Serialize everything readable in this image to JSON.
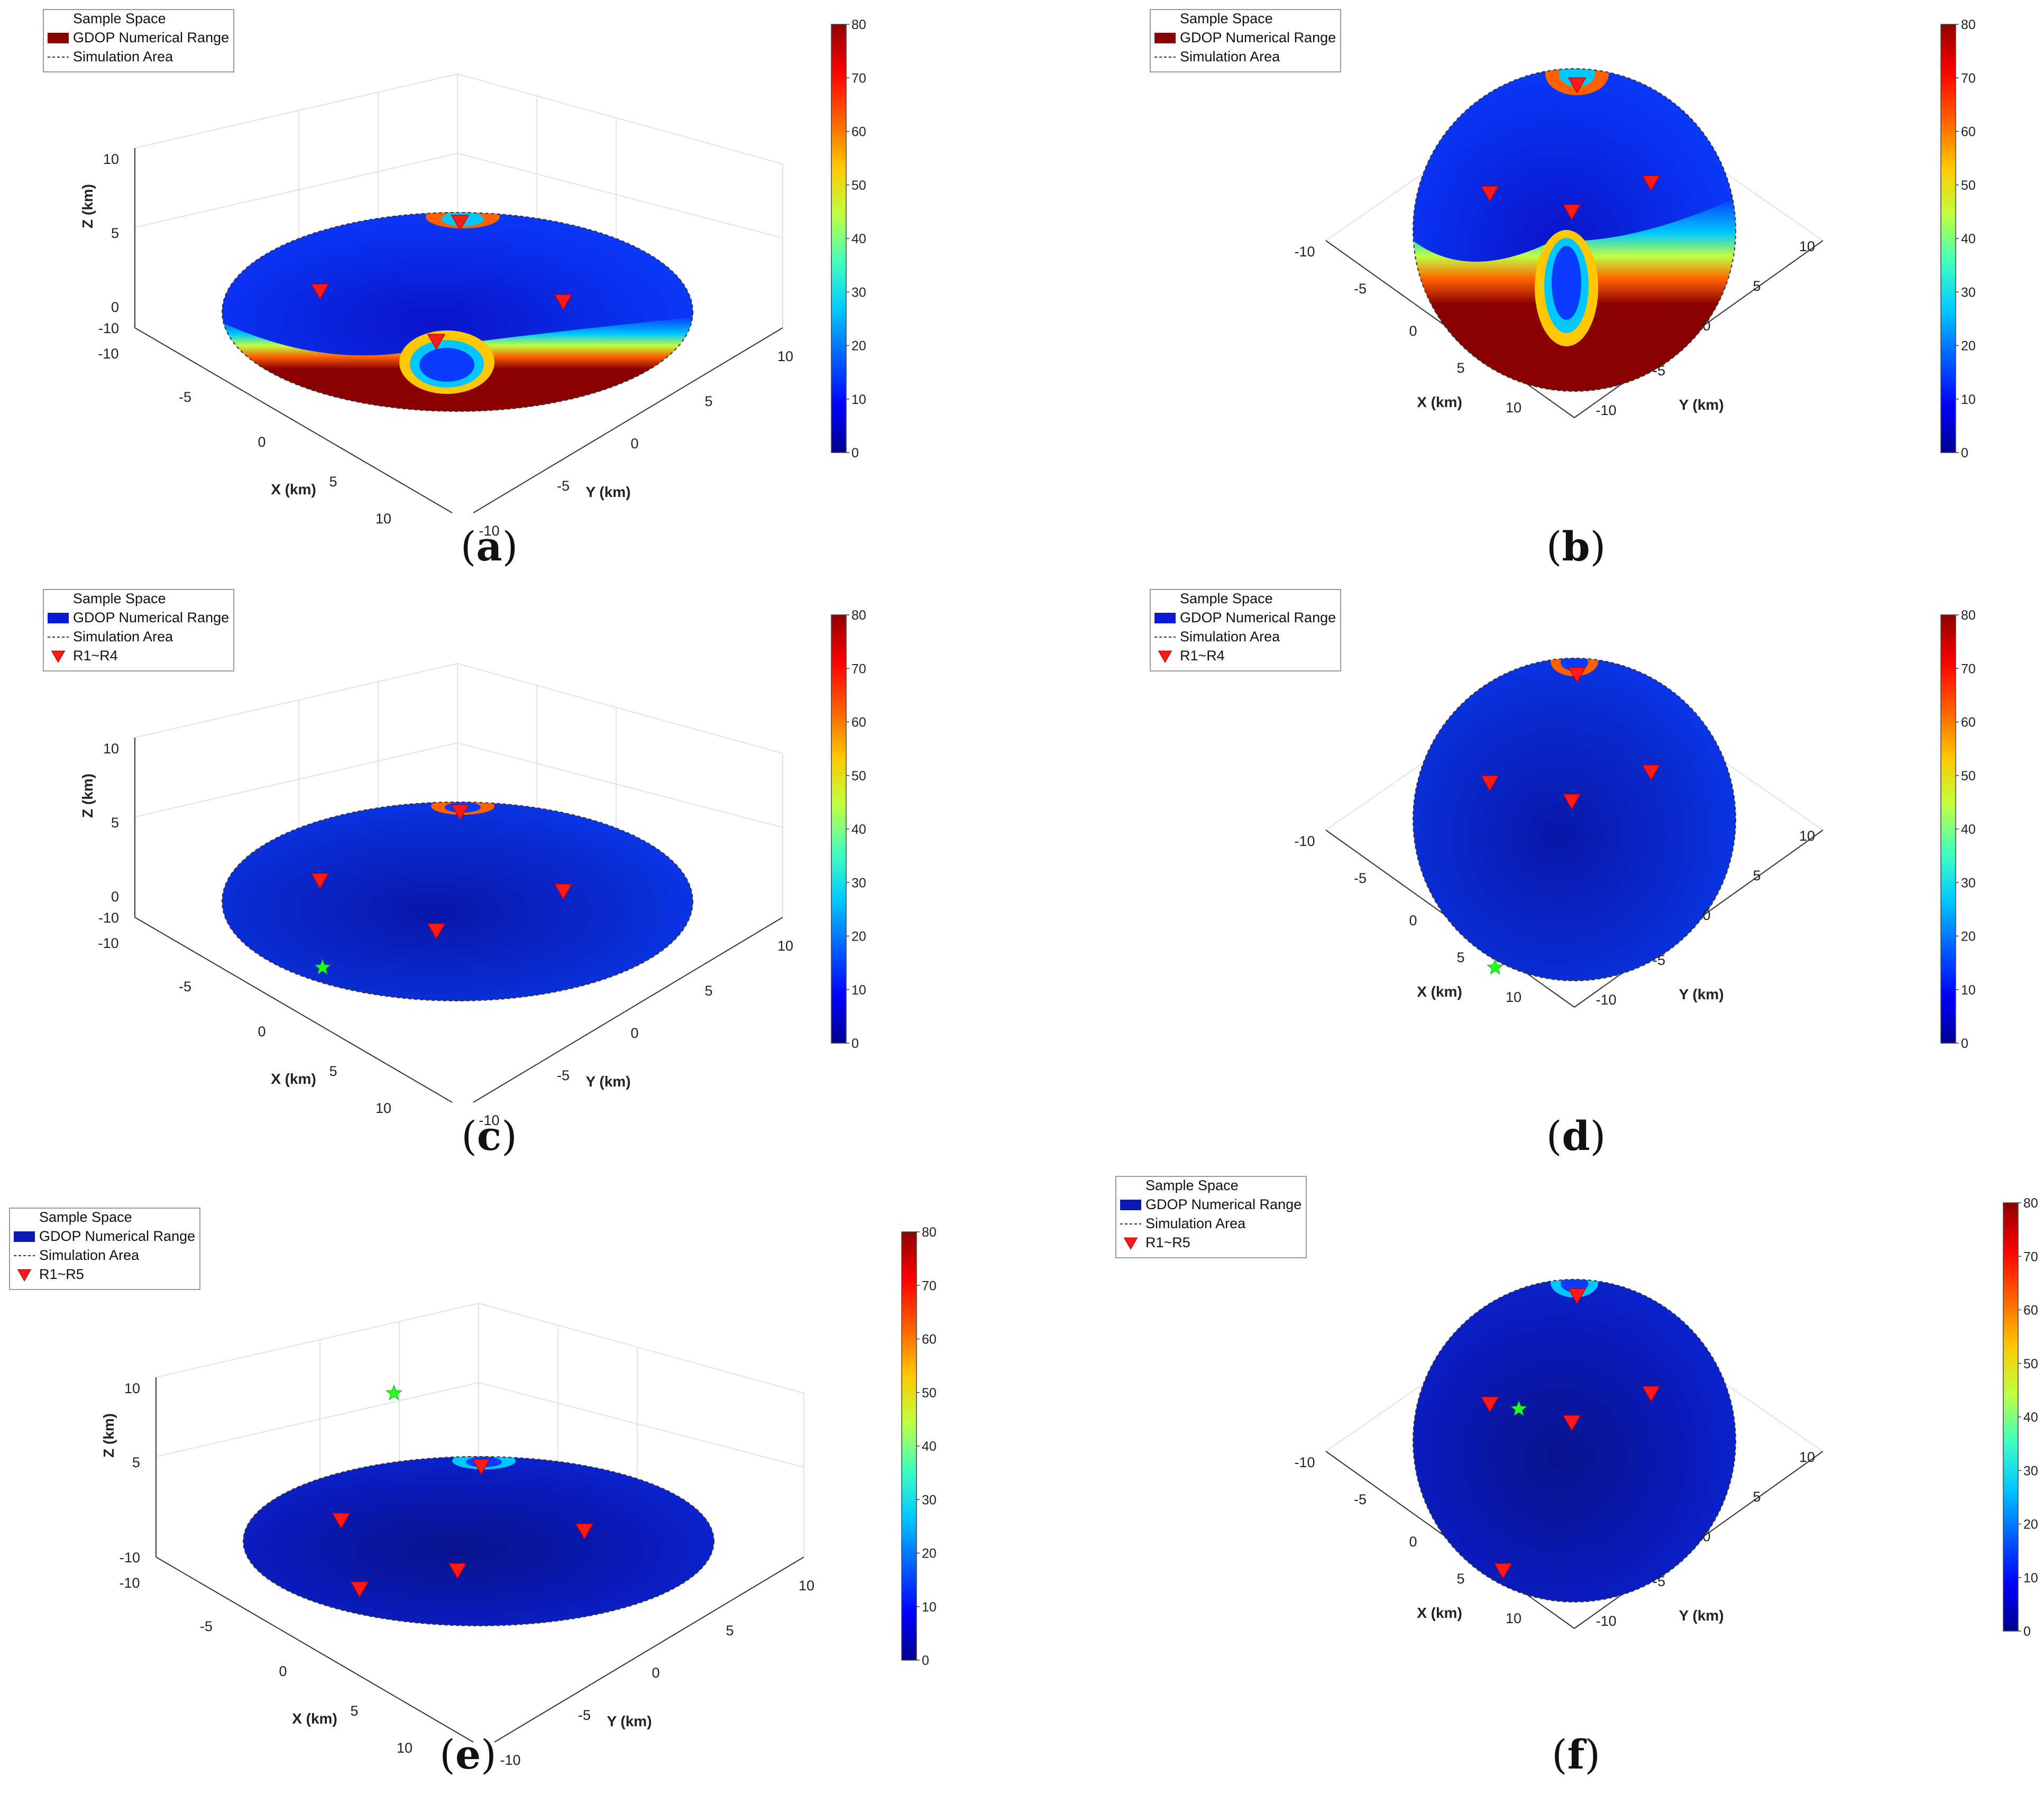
{
  "figure": {
    "panels": [
      {
        "id": "a",
        "caption_letter": "a",
        "view": "oblique",
        "legend": [
          "Sample Space",
          "GDOP Numerical Range",
          "Simulation Area"
        ],
        "legend_swatch": "#8b0000"
      },
      {
        "id": "b",
        "caption_letter": "b",
        "view": "top",
        "legend": [
          "Sample Space",
          "GDOP Numerical Range",
          "Simulation Area"
        ],
        "legend_swatch": "#8b0000"
      },
      {
        "id": "c",
        "caption_letter": "c",
        "view": "oblique",
        "legend": [
          "Sample Space",
          "GDOP Numerical Range",
          "Simulation Area",
          "R1~R4"
        ],
        "legend_swatch": "#0a1ad6"
      },
      {
        "id": "d",
        "caption_letter": "d",
        "view": "top",
        "legend": [
          "Sample Space",
          "GDOP Numerical Range",
          "Simulation Area",
          "R1~R4"
        ],
        "legend_swatch": "#0a1ad6"
      },
      {
        "id": "e",
        "caption_letter": "e",
        "view": "oblique",
        "legend": [
          "Sample Space",
          "GDOP Numerical Range",
          "Simulation Area",
          "R1~R5"
        ],
        "legend_swatch": "#0a1ab4"
      },
      {
        "id": "f",
        "caption_letter": "f",
        "view": "top",
        "legend": [
          "Sample Space",
          "GDOP Numerical Range",
          "Simulation Area",
          "R1~R5"
        ],
        "legend_swatch": "#0a1ab4"
      }
    ]
  },
  "chart_data": [
    {
      "type": "heatmap",
      "panel": "a",
      "xlabel": "X (km)",
      "ylabel": "Y (km)",
      "zlabel": "Z (km)",
      "xlim": [
        -10,
        10
      ],
      "ylim": [
        -10,
        10
      ],
      "zlim": [
        -10,
        10
      ],
      "x_ticks": [
        "-10",
        "-5",
        "0",
        "5",
        "10"
      ],
      "y_ticks": [
        "-10",
        "-5",
        "0",
        "5",
        "10"
      ],
      "z_ticks": [
        "10",
        "5",
        "0",
        "-10"
      ],
      "colorbar": {
        "min": 0,
        "max": 80,
        "ticks": [
          "0",
          "10",
          "20",
          "30",
          "40",
          "50",
          "60",
          "70",
          "80"
        ],
        "colormap": "jet"
      },
      "gdop_pattern": "high-lower-half",
      "receivers": [
        [
          0,
          -9.5
        ],
        [
          -4,
          2
        ],
        [
          4,
          4
        ],
        [
          4,
          -3
        ]
      ],
      "target": null
    },
    {
      "type": "heatmap",
      "panel": "b",
      "xlabel": "X (km)",
      "ylabel": "Y (km)",
      "xlim": [
        -10,
        10
      ],
      "ylim": [
        -10,
        10
      ],
      "x_ticks": [
        "-10",
        "-5",
        "0",
        "5",
        "10"
      ],
      "y_ticks": [
        "-10",
        "-5",
        "0",
        "5",
        "10"
      ],
      "colorbar": {
        "min": 0,
        "max": 80,
        "ticks": [
          "0",
          "10",
          "20",
          "30",
          "40",
          "50",
          "60",
          "70",
          "80"
        ],
        "colormap": "jet"
      },
      "gdop_pattern": "high-lower-half",
      "receivers": [
        [
          0,
          -9.5
        ],
        [
          -4,
          2
        ],
        [
          4,
          4
        ],
        [
          4,
          -3
        ]
      ],
      "target": null
    },
    {
      "type": "heatmap",
      "panel": "c",
      "xlabel": "X (km)",
      "ylabel": "Y (km)",
      "zlabel": "Z (km)",
      "xlim": [
        -10,
        10
      ],
      "ylim": [
        -10,
        10
      ],
      "zlim": [
        -10,
        10
      ],
      "x_ticks": [
        "-10",
        "-5",
        "0",
        "5",
        "10"
      ],
      "y_ticks": [
        "-10",
        "-5",
        "0",
        "5",
        "10"
      ],
      "z_ticks": [
        "10",
        "5",
        "0",
        "-10"
      ],
      "colorbar": {
        "min": 0,
        "max": 80,
        "ticks": [
          "0",
          "10",
          "20",
          "30",
          "40",
          "50",
          "60",
          "70",
          "80"
        ],
        "colormap": "jet"
      },
      "gdop_pattern": "low",
      "receivers": [
        [
          0,
          -9.5
        ],
        [
          -4,
          2
        ],
        [
          4,
          4
        ],
        [
          4,
          -3
        ]
      ],
      "target": [
        7.5,
        -2
      ]
    },
    {
      "type": "heatmap",
      "panel": "d",
      "xlabel": "X (km)",
      "ylabel": "Y (km)",
      "xlim": [
        -10,
        10
      ],
      "ylim": [
        -10,
        10
      ],
      "x_ticks": [
        "-10",
        "-5",
        "0",
        "5",
        "10"
      ],
      "y_ticks": [
        "-10",
        "-5",
        "0",
        "5",
        "10"
      ],
      "colorbar": {
        "min": 0,
        "max": 80,
        "ticks": [
          "0",
          "10",
          "20",
          "30",
          "40",
          "50",
          "60",
          "70",
          "80"
        ],
        "colormap": "jet"
      },
      "gdop_pattern": "low",
      "receivers": [
        [
          0,
          -9.5
        ],
        [
          -4,
          2
        ],
        [
          4,
          4
        ],
        [
          4,
          -3
        ]
      ],
      "target": [
        7.5,
        -2
      ]
    },
    {
      "type": "heatmap",
      "panel": "e",
      "xlabel": "X (km)",
      "ylabel": "Y (km)",
      "zlabel": "Z (km)",
      "xlim": [
        -10,
        10
      ],
      "ylim": [
        -10,
        10
      ],
      "zlim": [
        -10,
        10
      ],
      "x_ticks": [
        "-10",
        "-5",
        "0",
        "5",
        "10"
      ],
      "y_ticks": [
        "-10",
        "-5",
        "0",
        "5",
        "10"
      ],
      "z_ticks": [
        "10",
        "5",
        "-10"
      ],
      "colorbar": {
        "min": 0,
        "max": 80,
        "ticks": [
          "0",
          "10",
          "20",
          "30",
          "40",
          "50",
          "60",
          "70",
          "80"
        ],
        "colormap": "jet"
      },
      "gdop_pattern": "very-low",
      "receivers": [
        [
          0,
          -9.5
        ],
        [
          -4,
          2
        ],
        [
          4,
          4
        ],
        [
          4,
          -3
        ],
        [
          7.5,
          1
        ]
      ],
      "target": [
        -2,
        -3
      ]
    },
    {
      "type": "heatmap",
      "panel": "f",
      "xlabel": "X (km)",
      "ylabel": "Y (km)",
      "xlim": [
        -10,
        10
      ],
      "ylim": [
        -10,
        10
      ],
      "x_ticks": [
        "-10",
        "-5",
        "0",
        "5",
        "10"
      ],
      "y_ticks": [
        "-10",
        "-5",
        "0",
        "5",
        "10"
      ],
      "colorbar": {
        "min": 0,
        "max": 80,
        "ticks": [
          "0",
          "10",
          "20",
          "30",
          "40",
          "50",
          "60",
          "70",
          "80"
        ],
        "colormap": "jet"
      },
      "gdop_pattern": "very-low",
      "receivers": [
        [
          0,
          -9.5
        ],
        [
          -4,
          2
        ],
        [
          4,
          4
        ],
        [
          4,
          -3
        ],
        [
          7.5,
          1
        ]
      ],
      "target": [
        -2,
        -3
      ]
    }
  ]
}
